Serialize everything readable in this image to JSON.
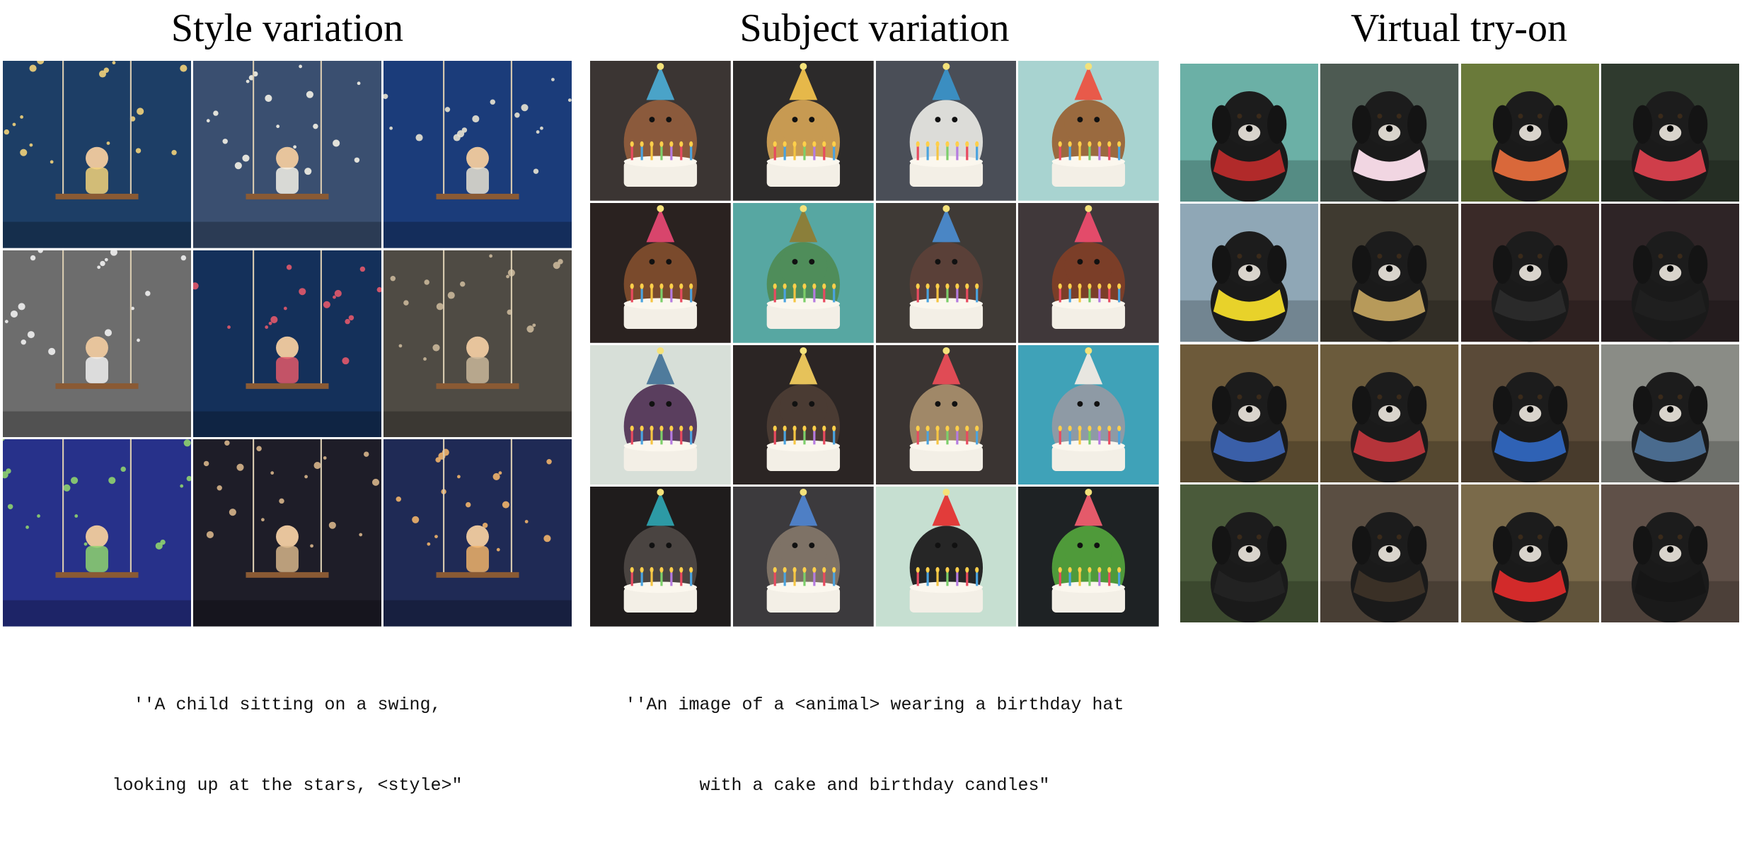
{
  "panels": {
    "style": {
      "title": "Style variation",
      "caption_line1": "''A child sitting on a swing,",
      "caption_line2": "looking up at the stars, <style>\"",
      "tiles": [
        {
          "bg": "#1d3e66",
          "accent": "#f2d27a"
        },
        {
          "bg": "#3a4f70",
          "accent": "#f4f1e6"
        },
        {
          "bg": "#1b3c7a",
          "accent": "#e9e3d2"
        },
        {
          "bg": "#6d6d6d",
          "accent": "#f0f0f0"
        },
        {
          "bg": "#14305a",
          "accent": "#e2596a"
        },
        {
          "bg": "#4f4b44",
          "accent": "#c9b79a"
        },
        {
          "bg": "#27318a",
          "accent": "#8fd36e"
        },
        {
          "bg": "#1e1d28",
          "accent": "#d6b58a"
        },
        {
          "bg": "#1f2a55",
          "accent": "#f0b36a"
        }
      ]
    },
    "subject": {
      "title": "Subject variation",
      "caption_line1": "''An image of a <animal> wearing a birthday hat",
      "caption_line2": "with a cake and birthday candles\"",
      "tiles": [
        {
          "bg": "#3b3533",
          "animal": "#8b5a3c",
          "hat": "#4aa3c8"
        },
        {
          "bg": "#2c2a2a",
          "animal": "#c79a52",
          "hat": "#e6b84a"
        },
        {
          "bg": "#4a4e57",
          "animal": "#dcdcd8",
          "hat": "#3b8ec1"
        },
        {
          "bg": "#a8d3d0",
          "animal": "#9a6a3f",
          "hat": "#e85a4a"
        },
        {
          "bg": "#2a2220",
          "animal": "#7a4a2c",
          "hat": "#d8456c"
        },
        {
          "bg": "#57a7a2",
          "animal": "#4f8d5a",
          "hat": "#8b7f3a"
        },
        {
          "bg": "#3f3a36",
          "animal": "#5a4038",
          "hat": "#4a86c5"
        },
        {
          "bg": "#40383a",
          "animal": "#7b3e28",
          "hat": "#e34b6a"
        },
        {
          "bg": "#d7dfd8",
          "animal": "#5a3e5e",
          "hat": "#4f7b9c"
        },
        {
          "bg": "#2b2524",
          "animal": "#4a3b33",
          "hat": "#e6c25a"
        },
        {
          "bg": "#3a3432",
          "animal": "#a08868",
          "hat": "#e04b55"
        },
        {
          "bg": "#3fa2b8",
          "animal": "#8e9aa5",
          "hat": "#e8e6e0"
        },
        {
          "bg": "#1f1c1c",
          "animal": "#4a4441",
          "hat": "#2d9aa5"
        },
        {
          "bg": "#3c3a3d",
          "animal": "#7e7266",
          "hat": "#4e7fc5"
        },
        {
          "bg": "#c6dfd1",
          "animal": "#262626",
          "hat": "#e23c3a"
        },
        {
          "bg": "#1e2224",
          "animal": "#4f9a3a",
          "hat": "#e45a6a"
        }
      ]
    },
    "tryon": {
      "title": "Virtual try-on",
      "tiles": [
        {
          "bg": "#6bb0a6",
          "outfit": "#b12a2a"
        },
        {
          "bg": "#4d5a52",
          "outfit": "#f1d6e2"
        },
        {
          "bg": "#6a7a3a",
          "outfit": "#d9683a"
        },
        {
          "bg": "#2f3a2e",
          "outfit": "#cf3e4a"
        },
        {
          "bg": "#8fa7b6",
          "outfit": "#e8d22a"
        },
        {
          "bg": "#3f3a30",
          "outfit": "#b79a5a"
        },
        {
          "bg": "#3a2a28",
          "outfit": "#2a2a2a"
        },
        {
          "bg": "#2e2426",
          "outfit": "#1f1f1f"
        },
        {
          "bg": "#6d5a3a",
          "outfit": "#3a5fa8"
        },
        {
          "bg": "#6b5b3c",
          "outfit": "#b5343a"
        },
        {
          "bg": "#5a4a38",
          "outfit": "#2f62b5"
        },
        {
          "bg": "#8a8c86",
          "outfit": "#4a6b8e"
        },
        {
          "bg": "#4a5a3a",
          "outfit": "#222222"
        },
        {
          "bg": "#5a4e42",
          "outfit": "#3a3026"
        },
        {
          "bg": "#7a6a4a",
          "outfit": "#d22a2a"
        },
        {
          "bg": "#5f5048",
          "outfit": "#161616"
        }
      ]
    }
  }
}
